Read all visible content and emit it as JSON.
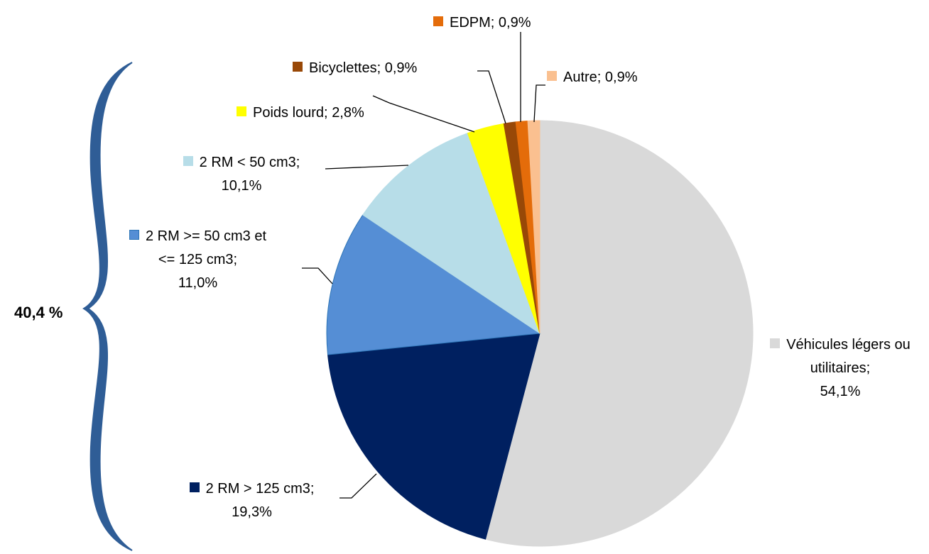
{
  "chart_data": {
    "type": "pie",
    "categories": [
      "Véhicules légers ou utilitaires;",
      "2 RM > 125 cm3;",
      "2 RM  >= 50 cm3 et <= 125 cm3;",
      "2 RM < 50 cm3;",
      "Poids lourd;",
      "Bicyclettes;",
      "EDPM;",
      "Autre;"
    ],
    "values": [
      54.1,
      19.3,
      11.0,
      10.1,
      2.8,
      0.9,
      0.9,
      0.9
    ],
    "value_labels": [
      "54,1%",
      "19,3%",
      "11,0%",
      "10,1%",
      "2,8%",
      "0,9%",
      "0,9%",
      "0,9%"
    ],
    "colors": [
      "#d9d9d9",
      "#002060",
      "#558ed5",
      "#b7dde8",
      "#ffff00",
      "#984807",
      "#e46c0a",
      "#fac090"
    ],
    "annotation": "40,4 %"
  }
}
